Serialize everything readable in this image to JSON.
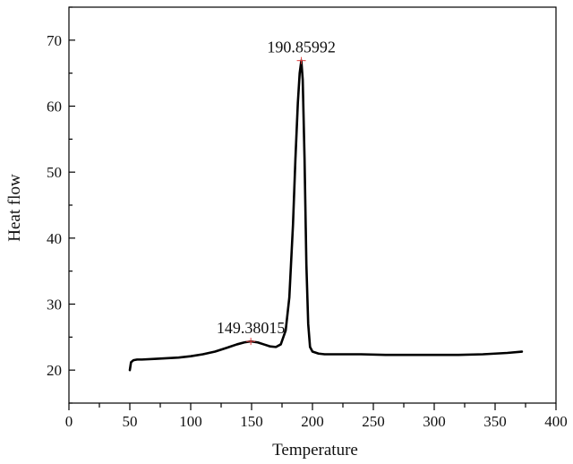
{
  "chart_data": {
    "type": "line",
    "title": "",
    "xlabel": "Temperature",
    "ylabel": "Heat flow",
    "xlim": [
      0,
      400
    ],
    "ylim": [
      15,
      75
    ],
    "x_ticks": [
      0,
      50,
      100,
      150,
      200,
      250,
      300,
      350,
      400
    ],
    "y_ticks": [
      20,
      30,
      40,
      50,
      60,
      70
    ],
    "grid": false,
    "legend": "none",
    "line_color": "#000000",
    "marker_color": "#e04040",
    "series": [
      {
        "x": [
          50,
          51,
          53,
          56,
          60,
          70,
          80,
          90,
          100,
          110,
          120,
          130,
          138,
          144,
          149.38,
          155,
          160,
          165,
          170,
          174,
          178,
          181,
          184,
          186,
          188,
          189.5,
          190.86,
          192,
          193.5,
          195,
          196.5,
          198,
          200,
          205,
          210,
          220,
          240,
          260,
          280,
          300,
          320,
          340,
          360,
          372
        ],
        "y": [
          20.0,
          21.2,
          21.5,
          21.6,
          21.6,
          21.7,
          21.8,
          21.9,
          22.1,
          22.4,
          22.8,
          23.4,
          23.9,
          24.2,
          24.35,
          24.2,
          23.9,
          23.6,
          23.5,
          23.9,
          26.0,
          31.0,
          42.0,
          52.0,
          60.5,
          65.0,
          66.9,
          64.0,
          52.0,
          36.0,
          27.0,
          23.5,
          22.8,
          22.5,
          22.4,
          22.4,
          22.4,
          22.3,
          22.3,
          22.3,
          22.3,
          22.4,
          22.6,
          22.8
        ]
      }
    ],
    "annotations": [
      {
        "x": 149.38,
        "y": 24.35,
        "text": "149.38015"
      },
      {
        "x": 190.86,
        "y": 66.9,
        "text": "190.85992"
      }
    ]
  }
}
